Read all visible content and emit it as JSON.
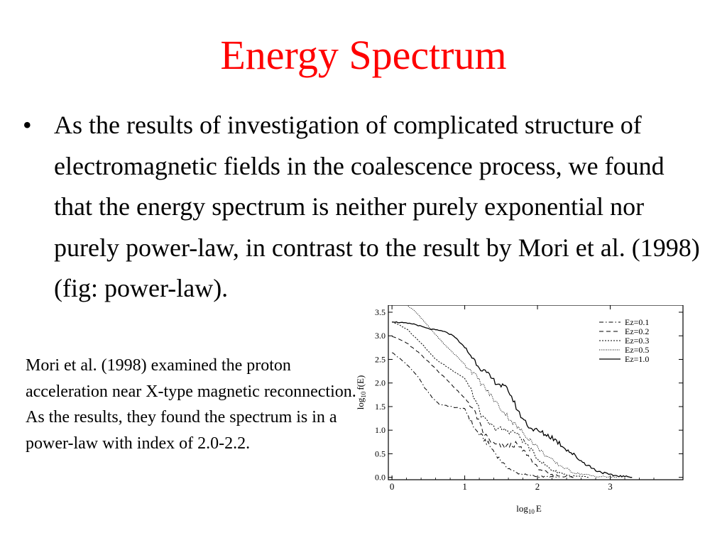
{
  "slide": {
    "title": "Energy Spectrum",
    "bullet_text": "As the results of investigation of complicated structure of electromagnetic fields in the coalescence process, we found that the energy spectrum is neither purely exponential nor purely power-law, in contrast to the result by Mori et al. (1998) (fig: power-law).",
    "bullet_glyph": "•",
    "note": "Mori et al. (1998) examined the proton acceleration near X-type magnetic reconnection. As the results, they found the spectrum is in a power-law with index of 2.0-2.2.",
    "title_color": "#ff0000"
  },
  "chart_data": {
    "type": "line",
    "xlabel_base": "log",
    "xlabel_sub": "10",
    "xlabel_var": "E",
    "ylabel_base": "log",
    "ylabel_sub": "10",
    "ylabel_var": "f(E)",
    "xlim": [
      -0.05,
      4.0
    ],
    "ylim": [
      -0.05,
      3.65
    ],
    "xticks": [
      "0",
      "1",
      "2",
      "3"
    ],
    "yticks": [
      "0.0",
      "0.5",
      "1.0",
      "1.5",
      "2.0",
      "2.5",
      "3.0",
      "3.5"
    ],
    "legend_position": "top-right",
    "series": [
      {
        "name": "Ez=0.1",
        "dash": "dashdot",
        "points": [
          [
            0,
            2.65
          ],
          [
            0.2,
            2.4
          ],
          [
            0.35,
            2.15
          ],
          [
            0.45,
            1.9
          ],
          [
            0.55,
            1.7
          ],
          [
            0.65,
            1.55
          ],
          [
            0.8,
            1.5
          ],
          [
            1.0,
            1.45
          ],
          [
            1.05,
            1.3
          ],
          [
            1.15,
            1.0
          ],
          [
            1.3,
            0.75
          ],
          [
            1.45,
            0.45
          ],
          [
            1.55,
            0.25
          ],
          [
            1.7,
            0.1
          ],
          [
            1.85,
            0.05
          ],
          [
            2.0,
            0.02
          ],
          [
            2.3,
            0.0
          ]
        ]
      },
      {
        "name": "Ez=0.2",
        "dash": "dashed",
        "points": [
          [
            0,
            3.0
          ],
          [
            0.2,
            2.85
          ],
          [
            0.4,
            2.6
          ],
          [
            0.6,
            2.3
          ],
          [
            0.8,
            2.0
          ],
          [
            0.95,
            1.75
          ],
          [
            1.05,
            1.6
          ],
          [
            1.15,
            1.35
          ],
          [
            1.25,
            0.95
          ],
          [
            1.4,
            0.7
          ],
          [
            1.55,
            0.65
          ],
          [
            1.7,
            0.7
          ],
          [
            1.85,
            0.5
          ],
          [
            2.0,
            0.2
          ],
          [
            2.2,
            0.05
          ],
          [
            2.5,
            0.0
          ]
        ]
      },
      {
        "name": "Ez=0.3",
        "dash": "dotted",
        "points": [
          [
            0,
            3.3
          ],
          [
            0.2,
            3.15
          ],
          [
            0.4,
            2.85
          ],
          [
            0.6,
            2.5
          ],
          [
            0.8,
            2.3
          ],
          [
            1.0,
            2.1
          ],
          [
            1.1,
            1.8
          ],
          [
            1.25,
            1.25
          ],
          [
            1.4,
            1.05
          ],
          [
            1.55,
            1.0
          ],
          [
            1.7,
            0.95
          ],
          [
            1.85,
            0.7
          ],
          [
            2.0,
            0.4
          ],
          [
            2.2,
            0.15
          ],
          [
            2.45,
            0.03
          ],
          [
            2.7,
            0.0
          ]
        ]
      },
      {
        "name": "Ez=0.5",
        "dash": "dotted-fine",
        "points": [
          [
            0,
            3.75
          ],
          [
            0.15,
            3.7
          ],
          [
            0.3,
            3.55
          ],
          [
            0.5,
            3.2
          ],
          [
            0.7,
            2.85
          ],
          [
            0.9,
            2.55
          ],
          [
            1.1,
            2.25
          ],
          [
            1.3,
            1.85
          ],
          [
            1.5,
            1.45
          ],
          [
            1.7,
            1.1
          ],
          [
            1.9,
            0.8
          ],
          [
            2.05,
            0.55
          ],
          [
            2.25,
            0.3
          ],
          [
            2.5,
            0.1
          ],
          [
            2.8,
            0.02
          ],
          [
            3.1,
            0.0
          ]
        ]
      },
      {
        "name": "Ez=1.0",
        "dash": "solid",
        "points": [
          [
            0,
            3.3
          ],
          [
            0.3,
            3.25
          ],
          [
            0.5,
            3.15
          ],
          [
            0.7,
            3.1
          ],
          [
            0.85,
            3.0
          ],
          [
            1.0,
            2.75
          ],
          [
            1.2,
            2.35
          ],
          [
            1.4,
            2.05
          ],
          [
            1.6,
            1.85
          ],
          [
            1.75,
            1.35
          ],
          [
            1.9,
            1.05
          ],
          [
            2.05,
            0.95
          ],
          [
            2.2,
            0.85
          ],
          [
            2.4,
            0.6
          ],
          [
            2.6,
            0.35
          ],
          [
            2.8,
            0.15
          ],
          [
            3.0,
            0.05
          ],
          [
            3.3,
            0.0
          ]
        ]
      }
    ]
  }
}
